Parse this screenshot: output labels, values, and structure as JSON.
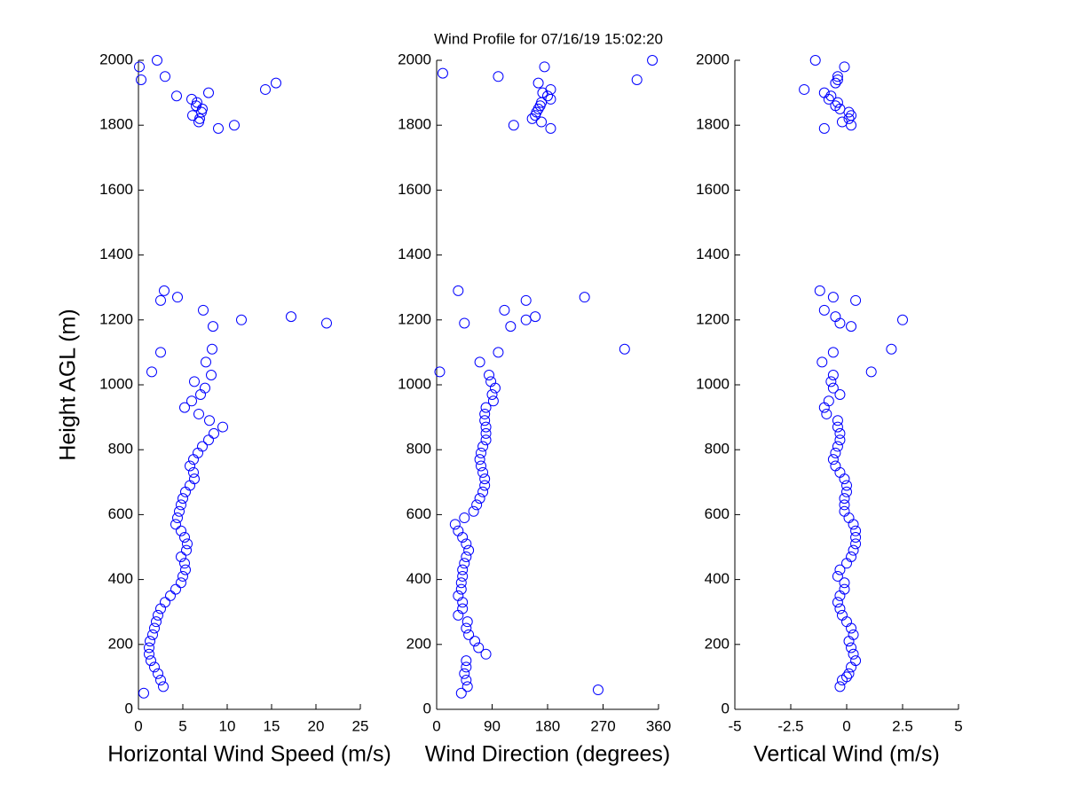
{
  "title": "Wind Profile for  07/16/19 15:02:20",
  "chart_data": [
    {
      "type": "scatter",
      "xlabel": "Horizontal Wind Speed (m/s)",
      "ylabel": "Height AGL (m)",
      "color": "#0000ff",
      "xlim": [
        0,
        25
      ],
      "xticks": [
        0,
        5,
        10,
        15,
        20,
        25
      ],
      "ylim": [
        0,
        2000
      ],
      "yticks": [
        0,
        200,
        400,
        600,
        800,
        1000,
        1200,
        1400,
        1600,
        1800,
        2000
      ],
      "x": [
        0.6,
        2.8,
        2.5,
        2.2,
        1.8,
        1.4,
        1.2,
        1.2,
        1.3,
        1.6,
        1.8,
        2.0,
        2.2,
        2.5,
        3.0,
        3.6,
        4.2,
        4.8,
        5.0,
        5.3,
        5.2,
        4.8,
        5.4,
        5.5,
        5.2,
        4.8,
        4.2,
        4.4,
        4.6,
        4.8,
        5.0,
        5.3,
        5.8,
        6.3,
        6.2,
        5.8,
        6.2,
        6.7,
        7.2,
        7.9,
        8.5,
        9.5,
        8.0,
        6.8,
        5.2,
        6.0,
        7.0,
        7.5,
        6.3,
        8.2,
        1.5,
        7.6,
        2.5,
        8.3,
        8.4,
        21.2,
        11.6,
        17.2,
        7.3,
        2.5,
        4.4,
        2.9,
        9.0,
        10.8,
        6.8,
        6.9,
        6.1,
        7.1,
        7.2,
        6.5,
        6.6,
        6.0,
        4.3,
        7.9,
        14.3,
        15.5,
        0.3,
        3.0,
        0.1,
        2.1
      ],
      "y": [
        50,
        70,
        90,
        110,
        130,
        150,
        170,
        190,
        210,
        230,
        250,
        270,
        290,
        310,
        330,
        350,
        370,
        390,
        410,
        430,
        450,
        470,
        490,
        510,
        530,
        550,
        570,
        590,
        610,
        630,
        650,
        670,
        690,
        710,
        730,
        750,
        770,
        790,
        810,
        830,
        850,
        870,
        890,
        910,
        930,
        950,
        970,
        990,
        1010,
        1030,
        1040,
        1070,
        1100,
        1110,
        1180,
        1190,
        1200,
        1210,
        1230,
        1260,
        1270,
        1290,
        1790,
        1800,
        1810,
        1820,
        1830,
        1840,
        1850,
        1860,
        1870,
        1880,
        1890,
        1900,
        1910,
        1930,
        1940,
        1950,
        1980,
        2000
      ]
    },
    {
      "type": "scatter",
      "xlabel": "Wind Direction (degrees)",
      "color": "#0000ff",
      "xlim": [
        0,
        360
      ],
      "xticks": [
        0,
        90,
        180,
        270,
        360
      ],
      "ylim": [
        0,
        2000
      ],
      "yticks": [
        0,
        200,
        400,
        600,
        800,
        1000,
        1200,
        1400,
        1600,
        1800,
        2000
      ],
      "x": [
        40,
        262,
        50,
        48,
        45,
        48,
        48,
        80,
        68,
        62,
        52,
        48,
        50,
        35,
        42,
        42,
        35,
        40,
        40,
        42,
        42,
        45,
        48,
        52,
        48,
        42,
        35,
        30,
        45,
        60,
        65,
        70,
        75,
        78,
        78,
        75,
        72,
        70,
        72,
        75,
        80,
        80,
        80,
        78,
        78,
        80,
        92,
        90,
        95,
        88,
        85,
        5,
        70,
        100,
        305,
        120,
        45,
        145,
        160,
        110,
        145,
        240,
        35,
        185,
        125,
        170,
        155,
        160,
        162,
        165,
        168,
        170,
        185,
        180,
        172,
        185,
        165,
        325,
        100,
        10,
        175,
        350
      ],
      "y": [
        50,
        60,
        70,
        90,
        110,
        130,
        150,
        170,
        190,
        210,
        230,
        250,
        270,
        290,
        310,
        330,
        350,
        370,
        390,
        410,
        430,
        450,
        470,
        490,
        510,
        530,
        550,
        570,
        590,
        610,
        630,
        650,
        670,
        690,
        710,
        730,
        750,
        770,
        790,
        810,
        830,
        850,
        870,
        890,
        910,
        930,
        950,
        970,
        990,
        1010,
        1030,
        1040,
        1070,
        1100,
        1110,
        1180,
        1190,
        1200,
        1210,
        1230,
        1260,
        1270,
        1290,
        1790,
        1800,
        1810,
        1820,
        1830,
        1840,
        1850,
        1860,
        1870,
        1880,
        1890,
        1900,
        1910,
        1930,
        1940,
        1950,
        1960,
        1980,
        2000
      ]
    },
    {
      "type": "scatter",
      "xlabel": "Vertical Wind (m/s)",
      "color": "#0000ff",
      "xlim": [
        -5,
        5
      ],
      "xticks": [
        -5,
        -2.5,
        0,
        2.5,
        5
      ],
      "ylim": [
        0,
        2000
      ],
      "yticks": [
        0,
        200,
        400,
        600,
        800,
        1000,
        1200,
        1400,
        1600,
        1800,
        2000
      ],
      "x": [
        -0.3,
        -0.2,
        0,
        0.1,
        0.2,
        0.4,
        0.3,
        0.2,
        0.1,
        0.3,
        0.2,
        0,
        -0.2,
        -0.3,
        -0.4,
        -0.3,
        -0.1,
        -0.1,
        -0.4,
        -0.3,
        0,
        0.2,
        0.3,
        0.4,
        0.4,
        0.4,
        0.3,
        0.1,
        -0.1,
        -0.1,
        -0.1,
        0,
        0,
        -0.1,
        -0.3,
        -0.5,
        -0.6,
        -0.5,
        -0.4,
        -0.3,
        -0.3,
        -0.4,
        -0.4,
        -0.9,
        -1.0,
        -0.8,
        -0.3,
        -0.6,
        -0.7,
        -0.6,
        1.1,
        -1.1,
        -0.6,
        2.0,
        0.2,
        -0.3,
        2.5,
        -0.5,
        -1.0,
        0.4,
        -0.6,
        -1.2,
        -1.0,
        0.2,
        -0.2,
        0.1,
        0.2,
        0.1,
        -0.3,
        -0.5,
        -0.4,
        -0.8,
        -0.7,
        -1.0,
        -1.9,
        -0.5,
        -0.4,
        -0.4,
        -0.1,
        -1.4
      ],
      "y": [
        70,
        90,
        100,
        110,
        130,
        150,
        170,
        190,
        210,
        230,
        250,
        270,
        290,
        310,
        330,
        350,
        370,
        390,
        410,
        430,
        450,
        470,
        490,
        510,
        530,
        550,
        570,
        590,
        610,
        630,
        650,
        670,
        690,
        710,
        730,
        750,
        770,
        790,
        810,
        830,
        850,
        870,
        890,
        910,
        930,
        950,
        970,
        990,
        1010,
        1030,
        1040,
        1070,
        1100,
        1110,
        1180,
        1190,
        1200,
        1210,
        1230,
        1260,
        1270,
        1290,
        1790,
        1800,
        1810,
        1820,
        1830,
        1840,
        1850,
        1860,
        1870,
        1880,
        1890,
        1900,
        1910,
        1930,
        1940,
        1950,
        1980,
        2000
      ]
    }
  ]
}
